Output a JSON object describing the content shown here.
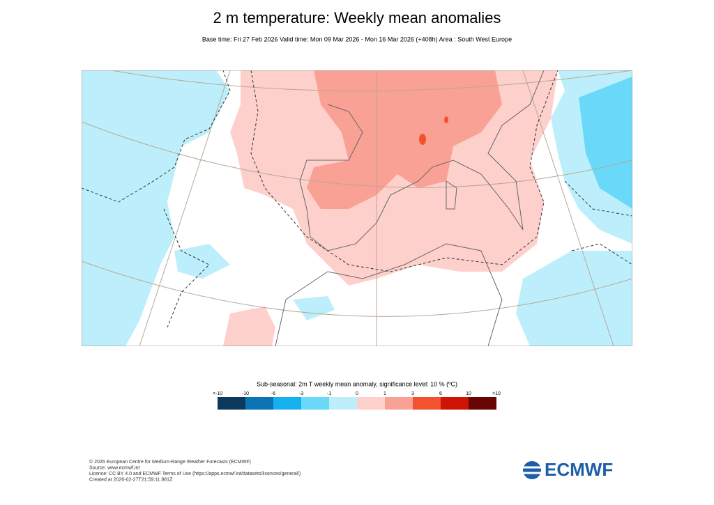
{
  "header": {
    "title": "2 m temperature: Weekly mean anomalies",
    "subtitle": "Base time: Fri 27 Feb 2026 Valid time: Mon 09 Mar 2026 - Mon 16 Mar 2026 (+408h) Area : South West Europe"
  },
  "legend": {
    "title": "Sub-seasonal: 2m T weekly mean anomaly, significance level: 10 % (ºC)",
    "labels": [
      "<-10",
      "-10",
      "-6",
      "-3",
      "-1",
      "0",
      "1",
      "3",
      "6",
      "10",
      ">10"
    ],
    "colors": [
      "#0b3a5e",
      "#0c73b4",
      "#16b0f0",
      "#6ad8f8",
      "#bdeefb",
      "#fdd0cb",
      "#f9a195",
      "#f2532e",
      "#cf1305",
      "#6a0404"
    ]
  },
  "footer": {
    "lines": [
      "© 2026 European Centre for Medium-Range Weather Forecasts (ECMWF)",
      "Source: www.ecmwf.int",
      "Licence: CC BY 4.0 and ECMWF Terms of Use (https://apps.ecmwf.int/datasets/licences/general/)",
      "Created at 2026-02-27T21:59:11.981Z"
    ],
    "logo": "ECMWF"
  }
}
